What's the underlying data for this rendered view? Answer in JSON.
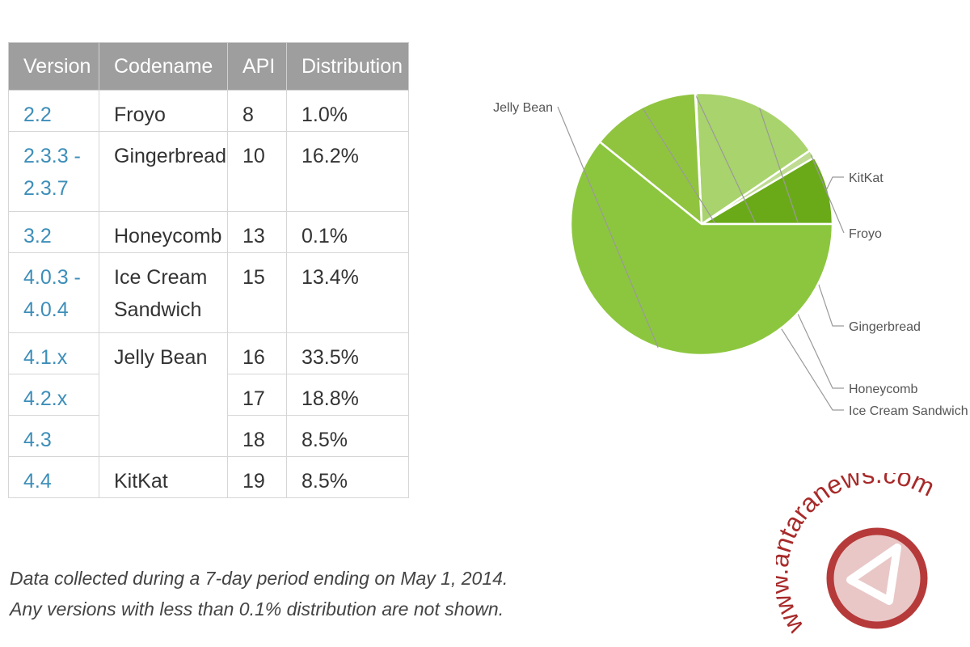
{
  "table": {
    "headers": [
      "Version",
      "Codename",
      "API",
      "Distribution"
    ],
    "rows": [
      {
        "version_lines": [
          "2.2"
        ],
        "codename_lines": [
          "Froyo"
        ],
        "api": "8",
        "distribution": "1.0%"
      },
      {
        "version_lines": [
          "2.3.3 -",
          "2.3.7"
        ],
        "codename_lines": [
          "Gingerbread"
        ],
        "api": "10",
        "distribution": "16.2%"
      },
      {
        "version_lines": [
          "3.2"
        ],
        "codename_lines": [
          "Honeycomb"
        ],
        "api": "13",
        "distribution": "0.1%"
      },
      {
        "version_lines": [
          "4.0.3 -",
          "4.0.4"
        ],
        "codename_lines": [
          "Ice Cream",
          "Sandwich"
        ],
        "api": "15",
        "distribution": "13.4%"
      },
      {
        "version_lines": [
          "4.1.x"
        ],
        "codename_lines": [
          "Jelly Bean"
        ],
        "api": "16",
        "distribution": "33.5%"
      },
      {
        "version_lines": [
          "4.2.x"
        ],
        "codename_lines": [],
        "api": "17",
        "distribution": "18.8%"
      },
      {
        "version_lines": [
          "4.3"
        ],
        "codename_lines": [],
        "api": "18",
        "distribution": "8.5%"
      },
      {
        "version_lines": [
          "4.4"
        ],
        "codename_lines": [
          "KitKat"
        ],
        "api": "19",
        "distribution": "8.5%"
      }
    ]
  },
  "notes": {
    "line1": "Data collected during a 7-day period ending on May 1, 2014.",
    "line2": "Any versions with less than 0.1% distribution are not shown."
  },
  "chart_data": {
    "type": "pie",
    "slices": [
      {
        "label": "KitKat",
        "value": 8.5,
        "color": "#6aaa18"
      },
      {
        "label": "Froyo",
        "value": 1.0,
        "color": "#bfdc92"
      },
      {
        "label": "Gingerbread",
        "value": 16.2,
        "color": "#a9d36c"
      },
      {
        "label": "Honeycomb",
        "value": 0.1,
        "color": "#9ccc5a"
      },
      {
        "label": "Ice Cream Sandwich",
        "value": 13.4,
        "color": "#90c43f"
      },
      {
        "label": "Jelly Bean",
        "value": 60.8,
        "color": "#8cc63e"
      }
    ]
  },
  "watermark": {
    "text": "www.antaranews.com"
  }
}
